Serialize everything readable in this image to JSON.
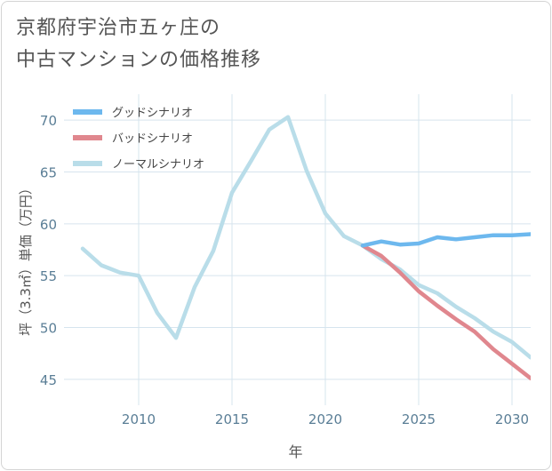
{
  "title": {
    "line1": "京都府宇治市五ヶ庄の",
    "line2": "中古マンションの価格推移"
  },
  "chart_data": {
    "type": "line",
    "xlabel": "年",
    "ylabel": "坪（3.3㎡）単価（万円）",
    "xlim": [
      2006,
      2031
    ],
    "ylim": [
      42.5,
      72.5
    ],
    "xticks": [
      2010,
      2015,
      2020,
      2025,
      2030
    ],
    "yticks": [
      45,
      50,
      55,
      60,
      65,
      70
    ],
    "grid": true,
    "legend_position": "top-left",
    "series": [
      {
        "name": "グッドシナリオ",
        "color": "#6db8ee",
        "x": [
          2022,
          2023,
          2024,
          2025,
          2026,
          2027,
          2028,
          2029,
          2030,
          2031
        ],
        "values": [
          57.9,
          58.3,
          58.0,
          58.1,
          58.7,
          58.5,
          58.7,
          58.9,
          58.9,
          59.0
        ]
      },
      {
        "name": "バッドシナリオ",
        "color": "#e0878e",
        "x": [
          2022,
          2023,
          2024,
          2025,
          2026,
          2027,
          2028,
          2029,
          2030,
          2031
        ],
        "values": [
          57.9,
          56.9,
          55.3,
          53.5,
          52.1,
          50.8,
          49.6,
          47.9,
          46.5,
          45.1
        ]
      },
      {
        "name": "ノーマルシナリオ",
        "color": "#b9dde9",
        "x": [
          2007,
          2008,
          2009,
          2010,
          2011,
          2012,
          2013,
          2014,
          2015,
          2016,
          2017,
          2018,
          2019,
          2020,
          2021,
          2022,
          2023,
          2024,
          2025,
          2026,
          2027,
          2028,
          2029,
          2030,
          2031
        ],
        "values": [
          57.6,
          56.0,
          55.3,
          55.0,
          51.4,
          49.0,
          53.9,
          57.4,
          63.0,
          66.0,
          69.1,
          70.3,
          65.1,
          61.0,
          58.8,
          57.9,
          56.6,
          55.6,
          54.1,
          53.3,
          52.0,
          50.9,
          49.6,
          48.6,
          47.1
        ]
      }
    ]
  }
}
